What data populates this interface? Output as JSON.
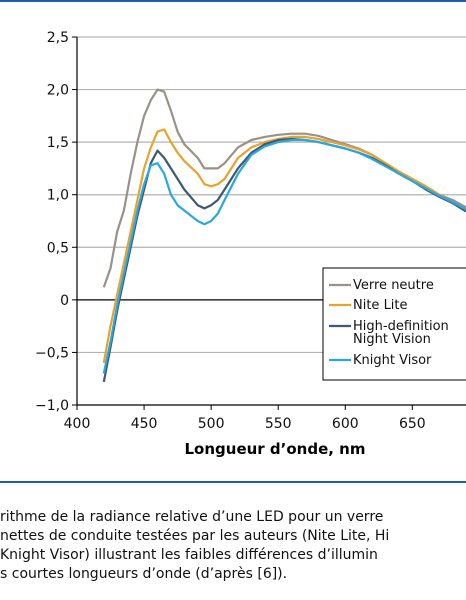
{
  "chart_data": {
    "type": "line",
    "xlabel": "Longueur d’onde, nm",
    "ylabel": "",
    "xlim": [
      400,
      690
    ],
    "ylim": [
      -1.0,
      2.5
    ],
    "grid": true,
    "x_ticks": [
      400,
      450,
      500,
      550,
      600,
      650
    ],
    "x_tick_labels": [
      "400",
      "450",
      "500",
      "550",
      "600",
      "650"
    ],
    "y_ticks": [
      -1.0,
      -0.5,
      0,
      0.5,
      1.0,
      1.5,
      2.0,
      2.5
    ],
    "y_tick_labels": [
      "−1,0",
      "−0,5",
      "0",
      "0,5",
      "1,0",
      "1,5",
      "2,0",
      "2,5"
    ],
    "legend_position": "bottom-right",
    "series": [
      {
        "name": "Verre neutre",
        "color": "#9a9188",
        "x": [
          420,
          425,
          430,
          435,
          440,
          445,
          450,
          455,
          460,
          465,
          470,
          475,
          480,
          490,
          495,
          500,
          505,
          510,
          520,
          530,
          540,
          550,
          560,
          570,
          580,
          590,
          600,
          610,
          620,
          630,
          640,
          650,
          660,
          670,
          680,
          690
        ],
        "y": [
          0.12,
          0.3,
          0.65,
          0.85,
          1.2,
          1.5,
          1.75,
          1.9,
          2.0,
          1.98,
          1.8,
          1.6,
          1.48,
          1.35,
          1.25,
          1.25,
          1.25,
          1.3,
          1.45,
          1.52,
          1.55,
          1.57,
          1.58,
          1.58,
          1.56,
          1.52,
          1.48,
          1.44,
          1.38,
          1.3,
          1.22,
          1.15,
          1.08,
          1.0,
          0.95,
          0.88
        ]
      },
      {
        "name": "Nite Lite",
        "color": "#e8a32e",
        "x": [
          420,
          425,
          430,
          435,
          440,
          445,
          450,
          455,
          460,
          465,
          470,
          475,
          480,
          490,
          495,
          500,
          505,
          510,
          520,
          530,
          540,
          550,
          560,
          570,
          580,
          590,
          600,
          610,
          620,
          630,
          640,
          650,
          660,
          670,
          680,
          690
        ],
        "y": [
          -0.6,
          -0.25,
          0.05,
          0.35,
          0.65,
          0.95,
          1.25,
          1.45,
          1.6,
          1.62,
          1.5,
          1.4,
          1.32,
          1.2,
          1.1,
          1.08,
          1.1,
          1.15,
          1.35,
          1.45,
          1.5,
          1.53,
          1.55,
          1.55,
          1.53,
          1.5,
          1.47,
          1.43,
          1.38,
          1.3,
          1.22,
          1.15,
          1.08,
          1.0,
          0.92,
          0.85
        ]
      },
      {
        "name": "High-definition Night Vision",
        "color": "#3d5a73",
        "x": [
          420,
          425,
          430,
          435,
          440,
          445,
          450,
          455,
          460,
          465,
          470,
          475,
          480,
          490,
          495,
          500,
          505,
          510,
          520,
          530,
          540,
          550,
          560,
          570,
          580,
          590,
          600,
          610,
          620,
          630,
          640,
          650,
          660,
          670,
          680,
          690
        ],
        "y": [
          -0.78,
          -0.45,
          -0.1,
          0.2,
          0.5,
          0.8,
          1.05,
          1.3,
          1.42,
          1.35,
          1.25,
          1.15,
          1.05,
          0.9,
          0.87,
          0.9,
          0.95,
          1.05,
          1.25,
          1.4,
          1.48,
          1.52,
          1.53,
          1.52,
          1.5,
          1.47,
          1.44,
          1.4,
          1.35,
          1.28,
          1.2,
          1.13,
          1.05,
          0.98,
          0.92,
          0.84
        ]
      },
      {
        "name": "Knight Visor",
        "color": "#2aa8de",
        "x": [
          420,
          425,
          430,
          435,
          440,
          445,
          450,
          455,
          460,
          465,
          470,
          475,
          480,
          490,
          495,
          500,
          505,
          510,
          520,
          530,
          540,
          550,
          560,
          570,
          580,
          590,
          600,
          610,
          620,
          630,
          640,
          650,
          660,
          670,
          680,
          690
        ],
        "y": [
          -0.7,
          -0.4,
          -0.05,
          0.25,
          0.55,
          0.85,
          1.1,
          1.28,
          1.3,
          1.2,
          1.0,
          0.9,
          0.85,
          0.75,
          0.72,
          0.75,
          0.82,
          0.95,
          1.2,
          1.38,
          1.46,
          1.5,
          1.52,
          1.52,
          1.5,
          1.47,
          1.44,
          1.4,
          1.34,
          1.27,
          1.2,
          1.13,
          1.06,
          0.99,
          0.93,
          0.86
        ]
      }
    ]
  },
  "caption": {
    "line1": "rithme de la radiance relative d’une LED pour un verre",
    "line2": "nettes de conduite testées par les auteurs (Nite Lite, Hi",
    "line3": "Knight Visor) illustrant les faibles différences d’illumin",
    "line4": "s courtes longueurs d’onde (d’après [6])."
  }
}
